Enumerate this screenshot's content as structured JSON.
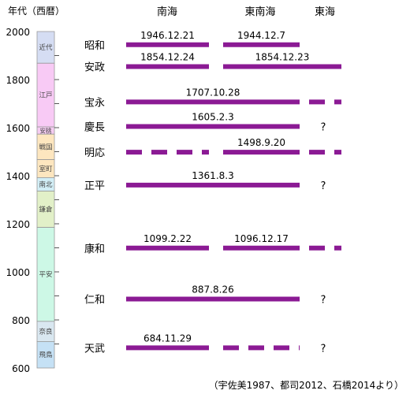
{
  "chart_data": {
    "type": "timeline",
    "title": "",
    "ylabel": "年代（西暦）",
    "ylim": [
      600,
      2000
    ],
    "yticks": [
      600,
      800,
      1000,
      1200,
      1400,
      1600,
      1800,
      2000
    ],
    "columns": [
      "南海",
      "東南海",
      "東海"
    ],
    "periods": [
      {
        "name": "近代",
        "start": 1868,
        "end": 2000,
        "color": "#d5ddf3"
      },
      {
        "name": "江戸",
        "start": 1603,
        "end": 1868,
        "color": "#f8caf5"
      },
      {
        "name": "安桃",
        "start": 1573,
        "end": 1603,
        "color": "#f6ccf2"
      },
      {
        "name": "戦国",
        "start": 1467,
        "end": 1573,
        "color": "#fde6bf"
      },
      {
        "name": "室町",
        "start": 1392,
        "end": 1467,
        "color": "#fde6bf"
      },
      {
        "name": "南北",
        "start": 1336,
        "end": 1392,
        "color": "#d2eef6"
      },
      {
        "name": "鎌倉",
        "start": 1185,
        "end": 1336,
        "color": "#e2f0c8"
      },
      {
        "name": "平安",
        "start": 794,
        "end": 1185,
        "color": "#cdf8e6"
      },
      {
        "name": "奈良",
        "start": 710,
        "end": 794,
        "color": "#d9e7f0"
      },
      {
        "name": "飛鳥",
        "start": 600,
        "end": 710,
        "color": "#c5e1f5"
      }
    ],
    "events": [
      {
        "era": "昭和",
        "year": 1945,
        "segments": [
          {
            "col": "南海",
            "style": "solid",
            "label": "1946.12.21"
          },
          {
            "col": "東南海",
            "style": "solid",
            "label": "1944.12.7"
          }
        ]
      },
      {
        "era": "安政",
        "year": 1854,
        "segments": [
          {
            "col": "南海",
            "style": "solid",
            "label": "1854.12.24"
          },
          {
            "col": "東南海+東海",
            "style": "solid",
            "label": "1854.12.23"
          }
        ]
      },
      {
        "era": "宝永",
        "year": 1707,
        "segments": [
          {
            "col": "南海+東南海",
            "style": "solid",
            "label": "1707.10.28"
          },
          {
            "col": "東海",
            "style": "dashed",
            "label": ""
          }
        ]
      },
      {
        "era": "慶長",
        "year": 1605,
        "segments": [
          {
            "col": "南海+東南海",
            "style": "solid",
            "label": "1605.2.3"
          }
        ],
        "unknown": "?"
      },
      {
        "era": "明応",
        "year": 1498,
        "segments": [
          {
            "col": "南海",
            "style": "dashed",
            "label": ""
          },
          {
            "col": "東南海",
            "style": "solid",
            "label": "1498.9.20"
          },
          {
            "col": "東海",
            "style": "dashed",
            "label": ""
          }
        ]
      },
      {
        "era": "正平",
        "year": 1361,
        "segments": [
          {
            "col": "南海+東南海",
            "style": "solid",
            "label": "1361.8.3"
          }
        ],
        "unknown": "?"
      },
      {
        "era": "康和",
        "year": 1099,
        "segments": [
          {
            "col": "南海",
            "style": "solid",
            "label": "1099.2.22"
          },
          {
            "col": "東南海",
            "style": "solid",
            "label": "1096.12.17"
          },
          {
            "col": "東海",
            "style": "dashed",
            "label": ""
          }
        ]
      },
      {
        "era": "仁和",
        "year": 887,
        "segments": [
          {
            "col": "南海+東南海",
            "style": "solid",
            "label": "887.8.26"
          }
        ],
        "unknown": "?"
      },
      {
        "era": "天武",
        "year": 684,
        "segments": [
          {
            "col": "南海",
            "style": "solid",
            "label": "684.11.29"
          },
          {
            "col": "東南海",
            "style": "dashed",
            "label": ""
          }
        ],
        "unknown": "?"
      }
    ],
    "line_color": "#8b1a94",
    "source": "（宇佐美1987、都司2012、石橋2014より）"
  }
}
